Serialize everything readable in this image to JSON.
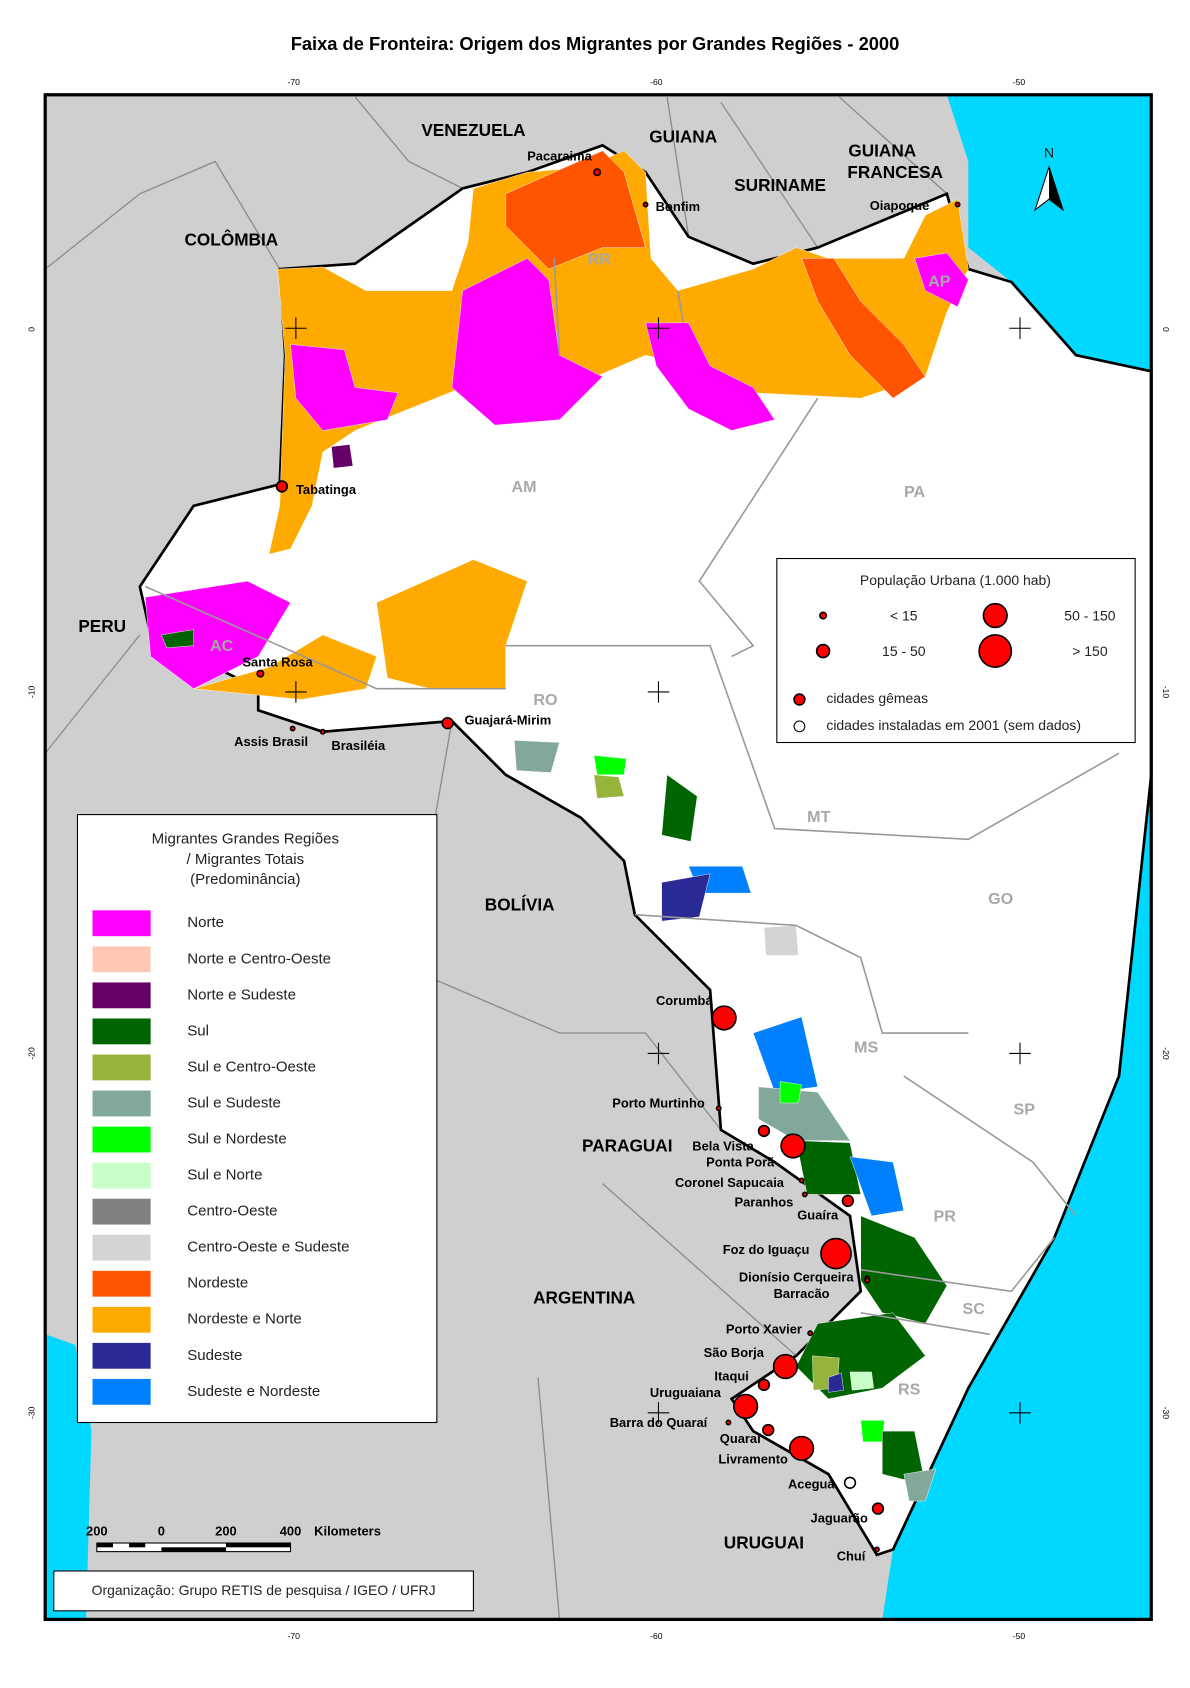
{
  "title": "Faixa de Fronteira: Origem dos Migrantes por Grandes Regiões - 2000",
  "graticule": {
    "top": [
      -70,
      -60,
      -50
    ],
    "bottom": [
      -70,
      -60,
      -50
    ],
    "left": [
      0,
      -10,
      -20,
      -30
    ],
    "right": [
      0,
      -10,
      -20,
      -30
    ]
  },
  "north": "N",
  "countries": [
    "VENEZUELA",
    "GUIANA",
    "SURINAME",
    "GUIANA",
    "FRANCESA",
    "COLÔMBIA",
    "PERU",
    "BOLÍVIA",
    "PARAGUAI",
    "ARGENTINA",
    "URUGUAI"
  ],
  "states": [
    "RR",
    "AP",
    "AM",
    "PA",
    "AC",
    "RO",
    "MT",
    "GO",
    "MS",
    "SP",
    "PR",
    "SC",
    "RS"
  ],
  "cities": [
    "Pacaraima",
    "Bonfim",
    "Oiapoque",
    "Tabatinga",
    "Santa Rosa",
    "Assis Brasil",
    "Brasiléia",
    "Guajará-Mirim",
    "Corumbá",
    "Porto Murtinho",
    "Bela Vista",
    "Ponta Porã",
    "Coronel Sapucaia",
    "Paranhos",
    "Guaíra",
    "Foz do Iguaçu",
    "Dionísio Cerqueira",
    "Barracão",
    "Porto Xavier",
    "São Borja",
    "Itaqui",
    "Uruguaiana",
    "Barra do Quaraí",
    "Quaraí",
    "Livramento",
    "Aceguá",
    "Jaguarão",
    "Chuí"
  ],
  "population_legend": {
    "title": "População Urbana (1.000 hab)",
    "classes": [
      "< 15",
      "15 - 50",
      "50 - 150",
      "> 150"
    ],
    "twin": "cidades gêmeas",
    "new": "cidades instaladas em 2001 (sem dados)"
  },
  "migrant_legend": {
    "title": [
      "Migrantes Grandes Regiões",
      "/ Migrantes Totais",
      "(Predominância)"
    ],
    "items": [
      {
        "label": "Norte",
        "color": "#ff00ff"
      },
      {
        "label": "Norte e Centro-Oeste",
        "color": "#ffc8b4"
      },
      {
        "label": "Norte e Sudeste",
        "color": "#660066"
      },
      {
        "label": "Sul",
        "color": "#006400"
      },
      {
        "label": "Sul e Centro-Oeste",
        "color": "#96b43c"
      },
      {
        "label": "Sul e Sudeste",
        "color": "#82a89a"
      },
      {
        "label": "Sul e Nordeste",
        "color": "#00ff00"
      },
      {
        "label": "Sul e Norte",
        "color": "#c8ffc8"
      },
      {
        "label": "Centro-Oeste",
        "color": "#808080"
      },
      {
        "label": "Centro-Oeste e Sudeste",
        "color": "#d4d4d4"
      },
      {
        "label": "Nordeste",
        "color": "#ff5500"
      },
      {
        "label": "Nordeste e Norte",
        "color": "#ffaa00"
      },
      {
        "label": "Sudeste",
        "color": "#2a2a96"
      },
      {
        "label": "Sudeste e Nordeste",
        "color": "#0080ff"
      }
    ]
  },
  "scale": {
    "labels": [
      "200",
      "0",
      "200",
      "400"
    ],
    "unit": "Kilometers"
  },
  "credit": "Organização: Grupo RETIS de pesquisa / IGEO / UFRJ"
}
